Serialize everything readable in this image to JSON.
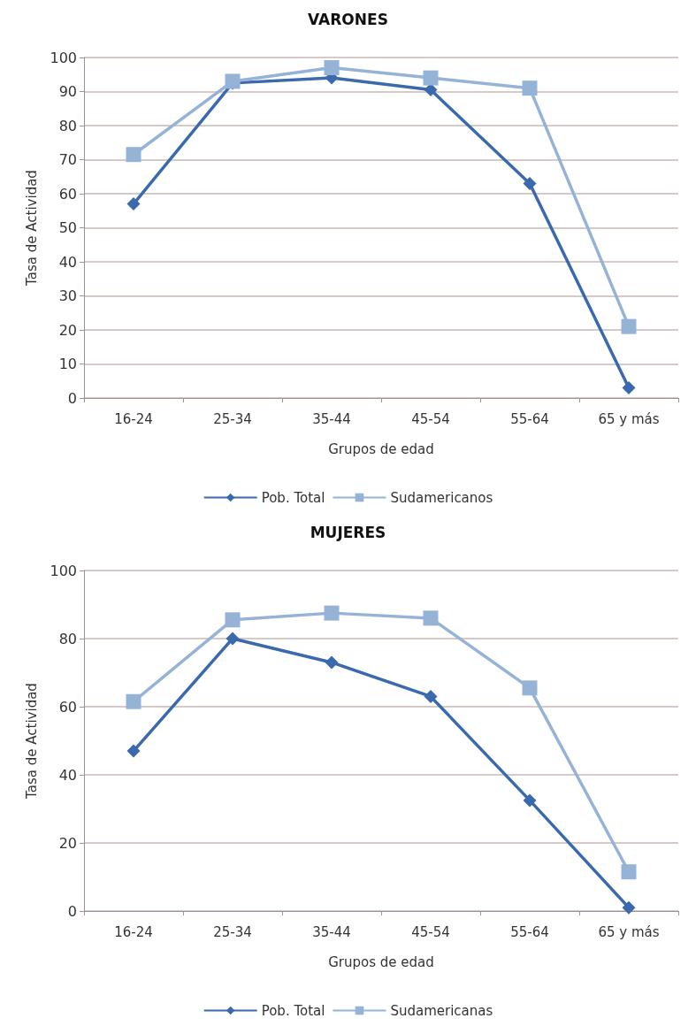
{
  "chart_data": [
    {
      "type": "line",
      "title": "VARONES",
      "xlabel": "Grupos de edad",
      "ylabel": "Tasa de Actividad",
      "categories": [
        "16-24",
        "25-34",
        "35-44",
        "45-54",
        "55-64",
        "65 y más"
      ],
      "series": [
        {
          "name": "Pob. Total",
          "color": "#3a6aad",
          "marker": "diamond",
          "values": [
            57,
            92.5,
            94,
            90.5,
            63,
            3
          ]
        },
        {
          "name": "Sudamericanos",
          "color": "#95b3d7",
          "marker": "square",
          "values": [
            71.5,
            93,
            97,
            94,
            91,
            21
          ]
        }
      ],
      "ylim": [
        0,
        100
      ],
      "yticks": [
        0,
        10,
        20,
        30,
        40,
        50,
        60,
        70,
        80,
        90,
        100
      ],
      "grid": "y",
      "legend": "bottom",
      "line_style": "solid"
    },
    {
      "type": "line",
      "title": "MUJERES",
      "xlabel": "Grupos de edad",
      "ylabel": "Tasa de Actividad",
      "categories": [
        "16-24",
        "25-34",
        "35-44",
        "45-54",
        "55-64",
        "65 y más"
      ],
      "series": [
        {
          "name": "Pob. Total",
          "color": "#3a6aad",
          "marker": "diamond",
          "values": [
            47,
            80,
            73,
            63,
            32.5,
            1
          ]
        },
        {
          "name": "Sudamericanas",
          "color": "#95b3d7",
          "marker": "square",
          "values": [
            61.5,
            85.5,
            87.5,
            86,
            65.5,
            11.5
          ]
        }
      ],
      "ylim": [
        0,
        100
      ],
      "yticks": [
        0,
        20,
        40,
        60,
        80,
        100
      ],
      "grid": "y",
      "legend": "bottom",
      "line_style": "solid"
    }
  ]
}
